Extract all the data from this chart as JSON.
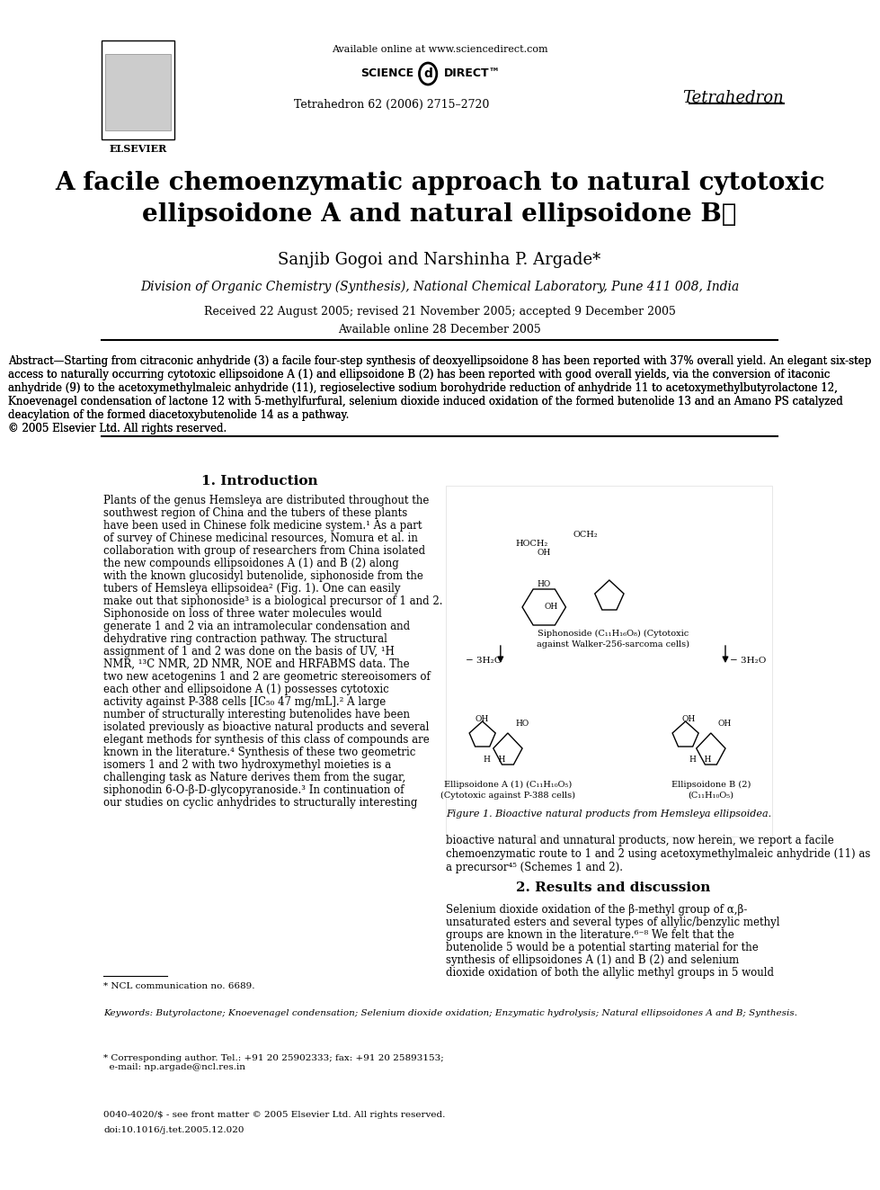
{
  "title_line1": "A facile chemoenzymatic approach to natural cytotoxic",
  "title_line2": "ellipsoidone A and natural ellipsoidone B★",
  "authors": "Sanjib Gogoi and Narshinha P. Argade*",
  "affiliation": "Division of Organic Chemistry (Synthesis), National Chemical Laboratory, Pune 411 008, India",
  "received": "Received 22 August 2005; revised 21 November 2005; accepted 9 December 2005",
  "available": "Available online 28 December 2005",
  "journal_name": "Tetrahedron",
  "journal_ref": "Tetrahedron 62 (2006) 2715–2720",
  "sciencedirect": "Available online at www.sciencedirect.com",
  "abstract_title": "Abstract",
  "abstract_text": "—Starting from citraconic anhydride (3) a facile four-step synthesis of deoxyellipsoidone 8 has been reported with 37% overall yield. An elegant six-step access to naturally occurring cytotoxic ellipsoidone A (1) and ellipsoidone B (2) has been reported with good overall yields, via the conversion of itaconic anhydride (9) to the acetoxymethylmaleic anhydride (11), regioselective sodium borohydride reduction of anhydride 11 to acetoxymethylbutyrolactone 12, Knoevenagel condensation of lactone 12 with 5-methylfurfural, selenium dioxide induced oxidation of the formed butenolide 13 and an Amano PS catalyzed deacylation of the formed diacetoxybutenolide 14 as a pathway.\n© 2005 Elsevier Ltd. All rights reserved.",
  "section1_title": "1. Introduction",
  "intro_text": "Plants of the genus Hemsleya are distributed throughout the southwest region of China and the tubers of these plants have been used in Chinese folk medicine system.¹ As a part of survey of Chinese medicinal resources, Nomura et al. in collaboration with group of researchers from China isolated the new compounds ellipsoidones A (1) and B (2) along with the known glucosidyl butenolide, siphonoside from the tubers of Hemsleya ellipsoidea² (Fig. 1). One can easily make out that siphonoside³ is a biological precursor of 1 and 2. Siphonoside on loss of three water molecules would generate 1 and 2 via an intramolecular condensation and dehydrative ring contraction pathway. The structural assignment of 1 and 2 was done on the basis of UV, ¹H NMR, ¹³C NMR, 2D NMR, NOE and HRFABMS data. The two new acetogenins 1 and 2 are geometric stereoisomers of each other and ellipsoidone A (1) possesses cytotoxic activity against P-388 cells [IC₅₀ 47 mg/mL].² A large number of structurally interesting butenolides have been isolated previously as bioactive natural products and several elegant methods for synthesis of this class of compounds are known in the literature.⁴ Synthesis of these two geometric isomers 1 and 2 with two hydroxymethyl moieties is a challenging task as Nature derives them from the sugar, siphonodin 6-O-β-D-glycopyranoside.³ In continuation of our studies on cyclic anhydrides to structurally interesting",
  "intro_text2": "bioactive natural and unnatural products, now herein, we report a facile chemoenzymatic route to 1 and 2 using acetoxymethylmaleic anhydride (11) as a precursor⁴⁵ (Schemes 1 and 2).",
  "section2_title": "2. Results and discussion",
  "results_text": "Selenium dioxide oxidation of the β-methyl group of α,β-unsaturated esters and several types of allylic/benzylic methyl groups are known in the literature.⁶⁻⁸ We felt that the butenolide 5 would be a potential starting material for the synthesis of ellipsoidones A (1) and B (2) and selenium dioxide oxidation of both the allylic methyl groups in 5 would",
  "footnote_star": "* NCL communication no. 6689.",
  "keywords_label": "Keywords",
  "keywords_text": ": Butyrolactone; Knoevenagel condensation; Selenium dioxide oxidation; Enzymatic hydrolysis; Natural ellipsoidones A and B; Synthesis.",
  "corresponding": "* Corresponding author. Tel.: +91 20 25902333; fax: +91 20 25893153;\n  e-mail: np.argade@ncl.res.in",
  "copyright": "0040-4020/$ - see front matter © 2005 Elsevier Ltd. All rights reserved.",
  "doi": "doi:10.1016/j.tet.2005.12.020",
  "fig1_caption": "Figure 1. Bioactive natural products from Hemsleya ellipsoidea.",
  "background_color": "#ffffff",
  "text_color": "#000000",
  "link_color": "#0000ff"
}
